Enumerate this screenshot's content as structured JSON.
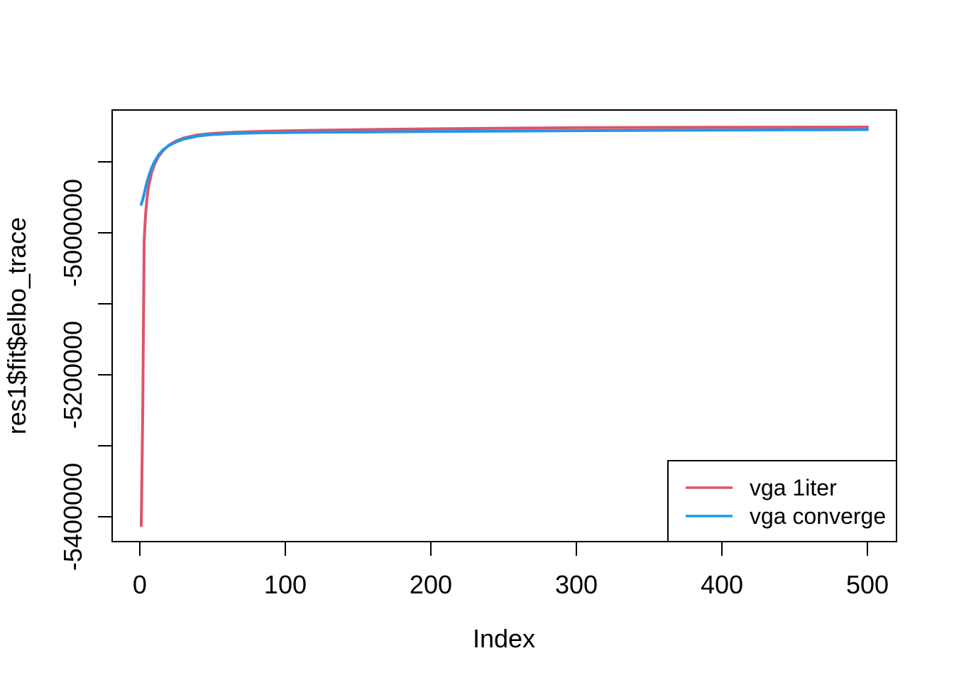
{
  "chart_data": {
    "type": "line",
    "title": "",
    "xlabel": "Index",
    "ylabel": "res1$fit$elbo_trace",
    "grid": false,
    "xlim": [
      -19,
      520
    ],
    "ylim": [
      -5435000,
      -4827000
    ],
    "x_ticks": [
      {
        "v": 0,
        "label": "0"
      },
      {
        "v": 100,
        "label": "100"
      },
      {
        "v": 200,
        "label": "200"
      },
      {
        "v": 300,
        "label": "300"
      },
      {
        "v": 400,
        "label": "400"
      },
      {
        "v": 500,
        "label": "500"
      }
    ],
    "y_ticks": [
      {
        "v": -5400000,
        "label": "-5400000"
      },
      {
        "v": -5300000,
        "label": ""
      },
      {
        "v": -5200000,
        "label": "-5200000"
      },
      {
        "v": -5100000,
        "label": ""
      },
      {
        "v": -5000000,
        "label": "-5000000"
      },
      {
        "v": -4900000,
        "label": ""
      }
    ],
    "legend": {
      "position": "bottomright",
      "entries": [
        {
          "label": "vga 1iter",
          "color": "#DF536B"
        },
        {
          "label": "vga converge",
          "color": "#2297E6"
        }
      ]
    },
    "series": [
      {
        "name": "vga 1iter",
        "color": "#DF536B",
        "points": [
          [
            1,
            -5412500
          ],
          [
            2,
            -5250000
          ],
          [
            3,
            -5010000
          ],
          [
            4,
            -4973000
          ],
          [
            5,
            -4950000
          ],
          [
            6,
            -4935000
          ],
          [
            8,
            -4916000
          ],
          [
            10,
            -4904000
          ],
          [
            13,
            -4892000
          ],
          [
            16,
            -4884000
          ],
          [
            20,
            -4876500
          ],
          [
            25,
            -4870500
          ],
          [
            30,
            -4866500
          ],
          [
            40,
            -4862000
          ],
          [
            50,
            -4860000
          ],
          [
            65,
            -4858200
          ],
          [
            80,
            -4857200
          ],
          [
            100,
            -4856200
          ],
          [
            125,
            -4855400
          ],
          [
            150,
            -4854700
          ],
          [
            200,
            -4853500
          ],
          [
            250,
            -4852600
          ],
          [
            300,
            -4851900
          ],
          [
            350,
            -4851500
          ],
          [
            400,
            -4851300
          ],
          [
            450,
            -4851100
          ],
          [
            500,
            -4851000
          ]
        ]
      },
      {
        "name": "vga converge",
        "color": "#2297E6",
        "points": [
          [
            1,
            -4960000
          ],
          [
            2,
            -4953000
          ],
          [
            3,
            -4945000
          ],
          [
            4,
            -4936000
          ],
          [
            5,
            -4928000
          ],
          [
            6,
            -4921000
          ],
          [
            8,
            -4909000
          ],
          [
            10,
            -4900000
          ],
          [
            13,
            -4890000
          ],
          [
            16,
            -4883000
          ],
          [
            20,
            -4877000
          ],
          [
            25,
            -4872000
          ],
          [
            30,
            -4868000
          ],
          [
            40,
            -4863500
          ],
          [
            50,
            -4861500
          ],
          [
            65,
            -4860000
          ],
          [
            80,
            -4859300
          ],
          [
            100,
            -4858800
          ],
          [
            125,
            -4858300
          ],
          [
            150,
            -4858000
          ],
          [
            200,
            -4857300
          ],
          [
            250,
            -4856700
          ],
          [
            300,
            -4856100
          ],
          [
            350,
            -4855600
          ],
          [
            400,
            -4855200
          ],
          [
            450,
            -4854900
          ],
          [
            500,
            -4854600
          ]
        ]
      }
    ]
  }
}
